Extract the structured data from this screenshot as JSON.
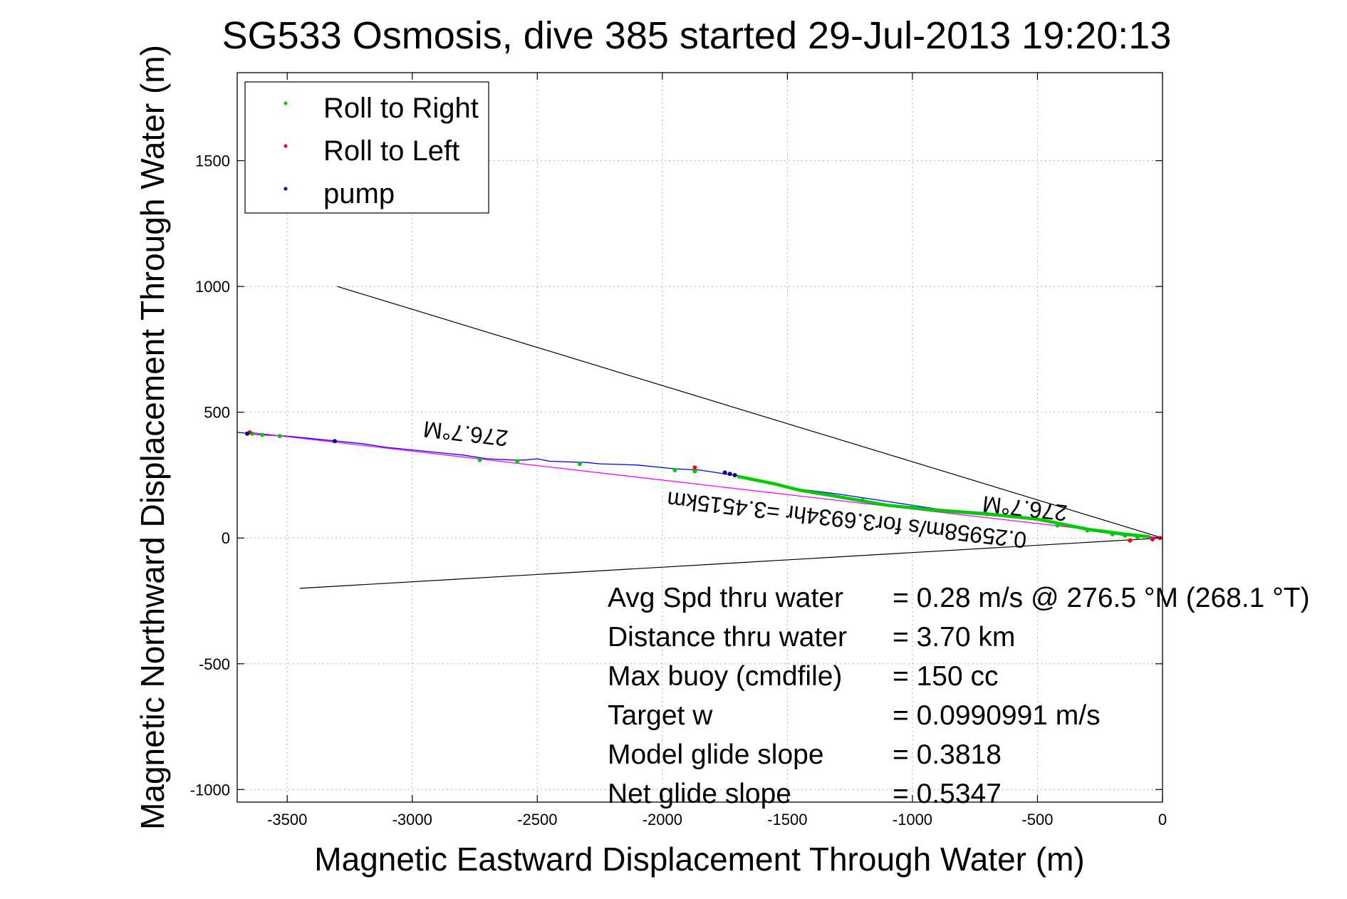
{
  "chart_data": {
    "type": "line",
    "title": "SG533 Osmosis, dive 385 started 29-Jul-2013 19:20:13",
    "xlabel": "Magnetic Eastward Displacement Through Water (m)",
    "ylabel": "Magnetic Northward Displacement Through Water (m)",
    "xlim": [
      -3700,
      0
    ],
    "ylim": [
      -1050,
      1850
    ],
    "xticks": [
      -3500,
      -3000,
      -2500,
      -2000,
      -1500,
      -1000,
      -500,
      0
    ],
    "yticks": [
      -1000,
      -500,
      0,
      500,
      1000,
      1500
    ],
    "grid": true,
    "legend_position": "top-left",
    "legend": [
      {
        "label": "Roll to Right",
        "color": "#00cc00"
      },
      {
        "label": "Roll to Left",
        "color": "#ff0000"
      },
      {
        "label": "pump",
        "color": "#000080"
      }
    ],
    "series": [
      {
        "type": "track",
        "color": "#0000ff",
        "x": [
          0,
          -150,
          -300,
          -400,
          -500,
          -700,
          -900,
          -1100,
          -1300,
          -1500,
          -1650,
          -1750,
          -1850,
          -1950,
          -2100,
          -2250,
          -2300,
          -2450,
          -2500,
          -2550,
          -2600,
          -2700,
          -2800,
          -2950,
          -3100,
          -3200,
          -3300,
          -3400,
          -3500,
          -3600,
          -3700
        ],
        "y": [
          0,
          10,
          30,
          55,
          75,
          100,
          115,
          145,
          175,
          200,
          240,
          255,
          270,
          275,
          290,
          295,
          300,
          305,
          315,
          310,
          310,
          315,
          330,
          345,
          360,
          375,
          385,
          395,
          405,
          410,
          420
        ]
      },
      {
        "type": "bearing_line",
        "color": "#ff00ff",
        "x": [
          0,
          -3650
        ],
        "y": [
          0,
          420
        ]
      },
      {
        "type": "envelope",
        "color": "#000000",
        "segments": [
          {
            "x": [
              0,
              -3300
            ],
            "y": [
              0,
              1000
            ]
          },
          {
            "x": [
              0,
              -3450
            ],
            "y": [
              0,
              -200
            ]
          }
        ]
      },
      {
        "name": "Roll to Right",
        "type": "markers",
        "color": "#00cc00",
        "x": [
          -3640,
          -3600,
          -3530,
          -2730,
          -2580,
          -2330,
          -1950,
          -1870,
          -1200,
          -1000,
          -700,
          -420,
          -300,
          -200,
          -150,
          -100
        ],
        "y": [
          415,
          410,
          405,
          310,
          305,
          295,
          270,
          265,
          150,
          125,
          95,
          50,
          30,
          15,
          10,
          5
        ]
      },
      {
        "name": "Roll to Left",
        "type": "markers",
        "color": "#ff0000",
        "x": [
          -3650,
          -1870,
          -130,
          -40,
          -10
        ],
        "y": [
          420,
          280,
          -10,
          -5,
          0
        ]
      },
      {
        "name": "pump",
        "type": "markers",
        "color": "#000080",
        "x": [
          -3660,
          -3310,
          -1750,
          -1730,
          -1710
        ],
        "y": [
          415,
          385,
          260,
          255,
          250
        ]
      },
      {
        "name": "green-dense-segment",
        "type": "thick_track",
        "color": "#00cc00",
        "x": [
          -1700,
          -1550,
          -1450,
          -1300,
          -1100,
          -900,
          -700,
          -500,
          -400,
          -300,
          -150,
          -50
        ],
        "y": [
          245,
          215,
          190,
          165,
          130,
          110,
          95,
          75,
          55,
          35,
          15,
          5
        ]
      }
    ],
    "annotations": {
      "bearing_upper": "276.7°M",
      "bearing_lower": "276.7°M",
      "summary_line": "0.25958m/s for3.6934hr =3.4515km"
    },
    "stats": [
      {
        "label": "Avg Spd thru water",
        "value": "=  0.28 m/s @ 276.5 °M (268.1 °T)"
      },
      {
        "label": "Distance thru water",
        "value": "=  3.70 km"
      },
      {
        "label": "Max buoy (cmdfile)",
        "value": "= 150 cc"
      },
      {
        "label": "Target w",
        "value": "= 0.0990991 m/s"
      },
      {
        "label": "Model glide slope",
        "value": "= 0.3818"
      },
      {
        "label": "Net glide slope",
        "value": "= 0.5347"
      }
    ]
  }
}
